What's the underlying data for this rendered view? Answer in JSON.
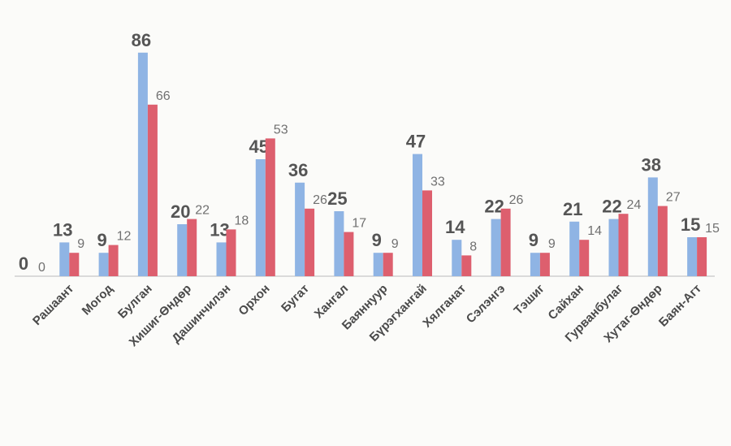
{
  "chart_data": {
    "type": "bar",
    "categories": [
      null,
      "Рашаант",
      "Могод",
      "Булган",
      "Хишиг-Өндөр",
      "Дашинчилэн",
      "Орхон",
      "Бугат",
      "Хангал",
      "Баяннуур",
      "Бүрэгхангай",
      "Хялганат",
      "Сэлэнгэ",
      "Тэшиг",
      "Сайхан",
      "Гурванбулаг",
      "Хутаг-Өндөр",
      "Баян-Агт"
    ],
    "series": [
      {
        "color": "#8fb4e4",
        "values": [
          0,
          13,
          9,
          86,
          20,
          13,
          45,
          36,
          25,
          9,
          47,
          14,
          22,
          9,
          21,
          22,
          38,
          15
        ]
      },
      {
        "color": "#dd5f6e",
        "values": [
          0,
          9,
          12,
          66,
          22,
          18,
          53,
          26,
          17,
          9,
          33,
          8,
          26,
          9,
          14,
          24,
          27,
          15
        ]
      }
    ],
    "ylim": [
      0,
      90
    ]
  }
}
